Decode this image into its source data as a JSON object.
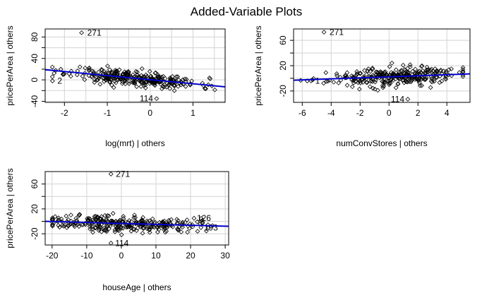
{
  "title": "Added-Variable Plots",
  "chart_data": [
    {
      "type": "scatter",
      "xlabel": "log(mrt) | others",
      "ylabel": "pricePerArea  | others",
      "xlim": [
        -2.45,
        1.75
      ],
      "ylim": [
        -42,
        95
      ],
      "xticks": [
        -2,
        -1,
        0,
        1
      ],
      "yticks": [
        -40,
        -20,
        0,
        20,
        40,
        60,
        80
      ],
      "ytick_labels": [
        "-40",
        "",
        "0",
        "",
        "40",
        "",
        "80"
      ],
      "xgrid": [
        -2,
        -1.5,
        -1,
        -0.5,
        0,
        0.5,
        1,
        1.5
      ],
      "ygrid": [
        -40,
        -20,
        0,
        20,
        40,
        60,
        80
      ],
      "fit_line": {
        "x": [
          -2.45,
          1.75
        ],
        "y": [
          19,
          -13
        ]
      },
      "annotations": [
        {
          "label": "271",
          "x": -1.6,
          "y": 88,
          "label_dx": 8
        },
        {
          "label": "114",
          "x": 0.15,
          "y": -35,
          "label_dx": -24
        },
        {
          "label": "2",
          "x": -2.28,
          "y": -2,
          "label_dx": 7
        }
      ],
      "points": {
        "count": 300,
        "center": -0.35,
        "spread": 0.75,
        "noise": 7,
        "seed": 11
      }
    },
    {
      "type": "scatter",
      "xlabel": "numConvStores | others",
      "ylabel": "pricePerArea  | others",
      "xlim": [
        -6.6,
        5.6
      ],
      "ylim": [
        -38,
        78
      ],
      "xticks": [
        -6,
        -4,
        -2,
        0,
        2,
        4
      ],
      "yticks": [
        -20,
        0,
        20,
        40,
        60
      ],
      "ytick_labels": [
        "-20",
        "",
        "20",
        "",
        "60"
      ],
      "xgrid": [
        -6,
        -4,
        -2,
        0,
        2,
        4
      ],
      "ygrid": [
        -20,
        0,
        20,
        40,
        60
      ],
      "fit_line": {
        "x": [
          -6.6,
          5.6
        ],
        "y": [
          -3,
          7
        ]
      },
      "annotations": [
        {
          "label": "271",
          "x": -4.5,
          "y": 73,
          "label_dx": 8
        },
        {
          "label": "114",
          "x": 1.3,
          "y": -33,
          "label_dx": -24
        },
        {
          "label": "1",
          "x": -5.4,
          "y": -4,
          "label_dx": 6
        }
      ],
      "points": {
        "count": 300,
        "center": 0.3,
        "spread": 2.2,
        "noise": 7,
        "seed": 23
      }
    },
    {
      "type": "scatter",
      "xlabel": "houseAge | others",
      "ylabel": "pricePerArea  | others",
      "xlim": [
        -22,
        31
      ],
      "ylim": [
        -38,
        80
      ],
      "xticks": [
        -20,
        -10,
        0,
        10,
        20,
        30
      ],
      "yticks": [
        -20,
        0,
        20,
        40,
        60
      ],
      "ytick_labels": [
        "-20",
        "",
        "20",
        "",
        "60"
      ],
      "xgrid": [
        -20,
        -10,
        0,
        10,
        20,
        30
      ],
      "ygrid": [
        -20,
        0,
        20,
        40,
        60
      ],
      "fit_line": {
        "x": [
          -22,
          31
        ],
        "y": [
          0,
          -8
        ]
      },
      "annotations": [
        {
          "label": "271",
          "x": -3,
          "y": 76,
          "label_dx": 7
        },
        {
          "label": "114",
          "x": -3,
          "y": -35,
          "label_dx": 6
        },
        {
          "label": "193",
          "x": 23,
          "y": -10,
          "label_dx": 4
        },
        {
          "label": "126",
          "x": 21,
          "y": 5,
          "label_dx": 4
        }
      ],
      "points": {
        "count": 300,
        "center": 0,
        "spread": 11,
        "noise": 6.5,
        "seed": 37
      }
    }
  ]
}
